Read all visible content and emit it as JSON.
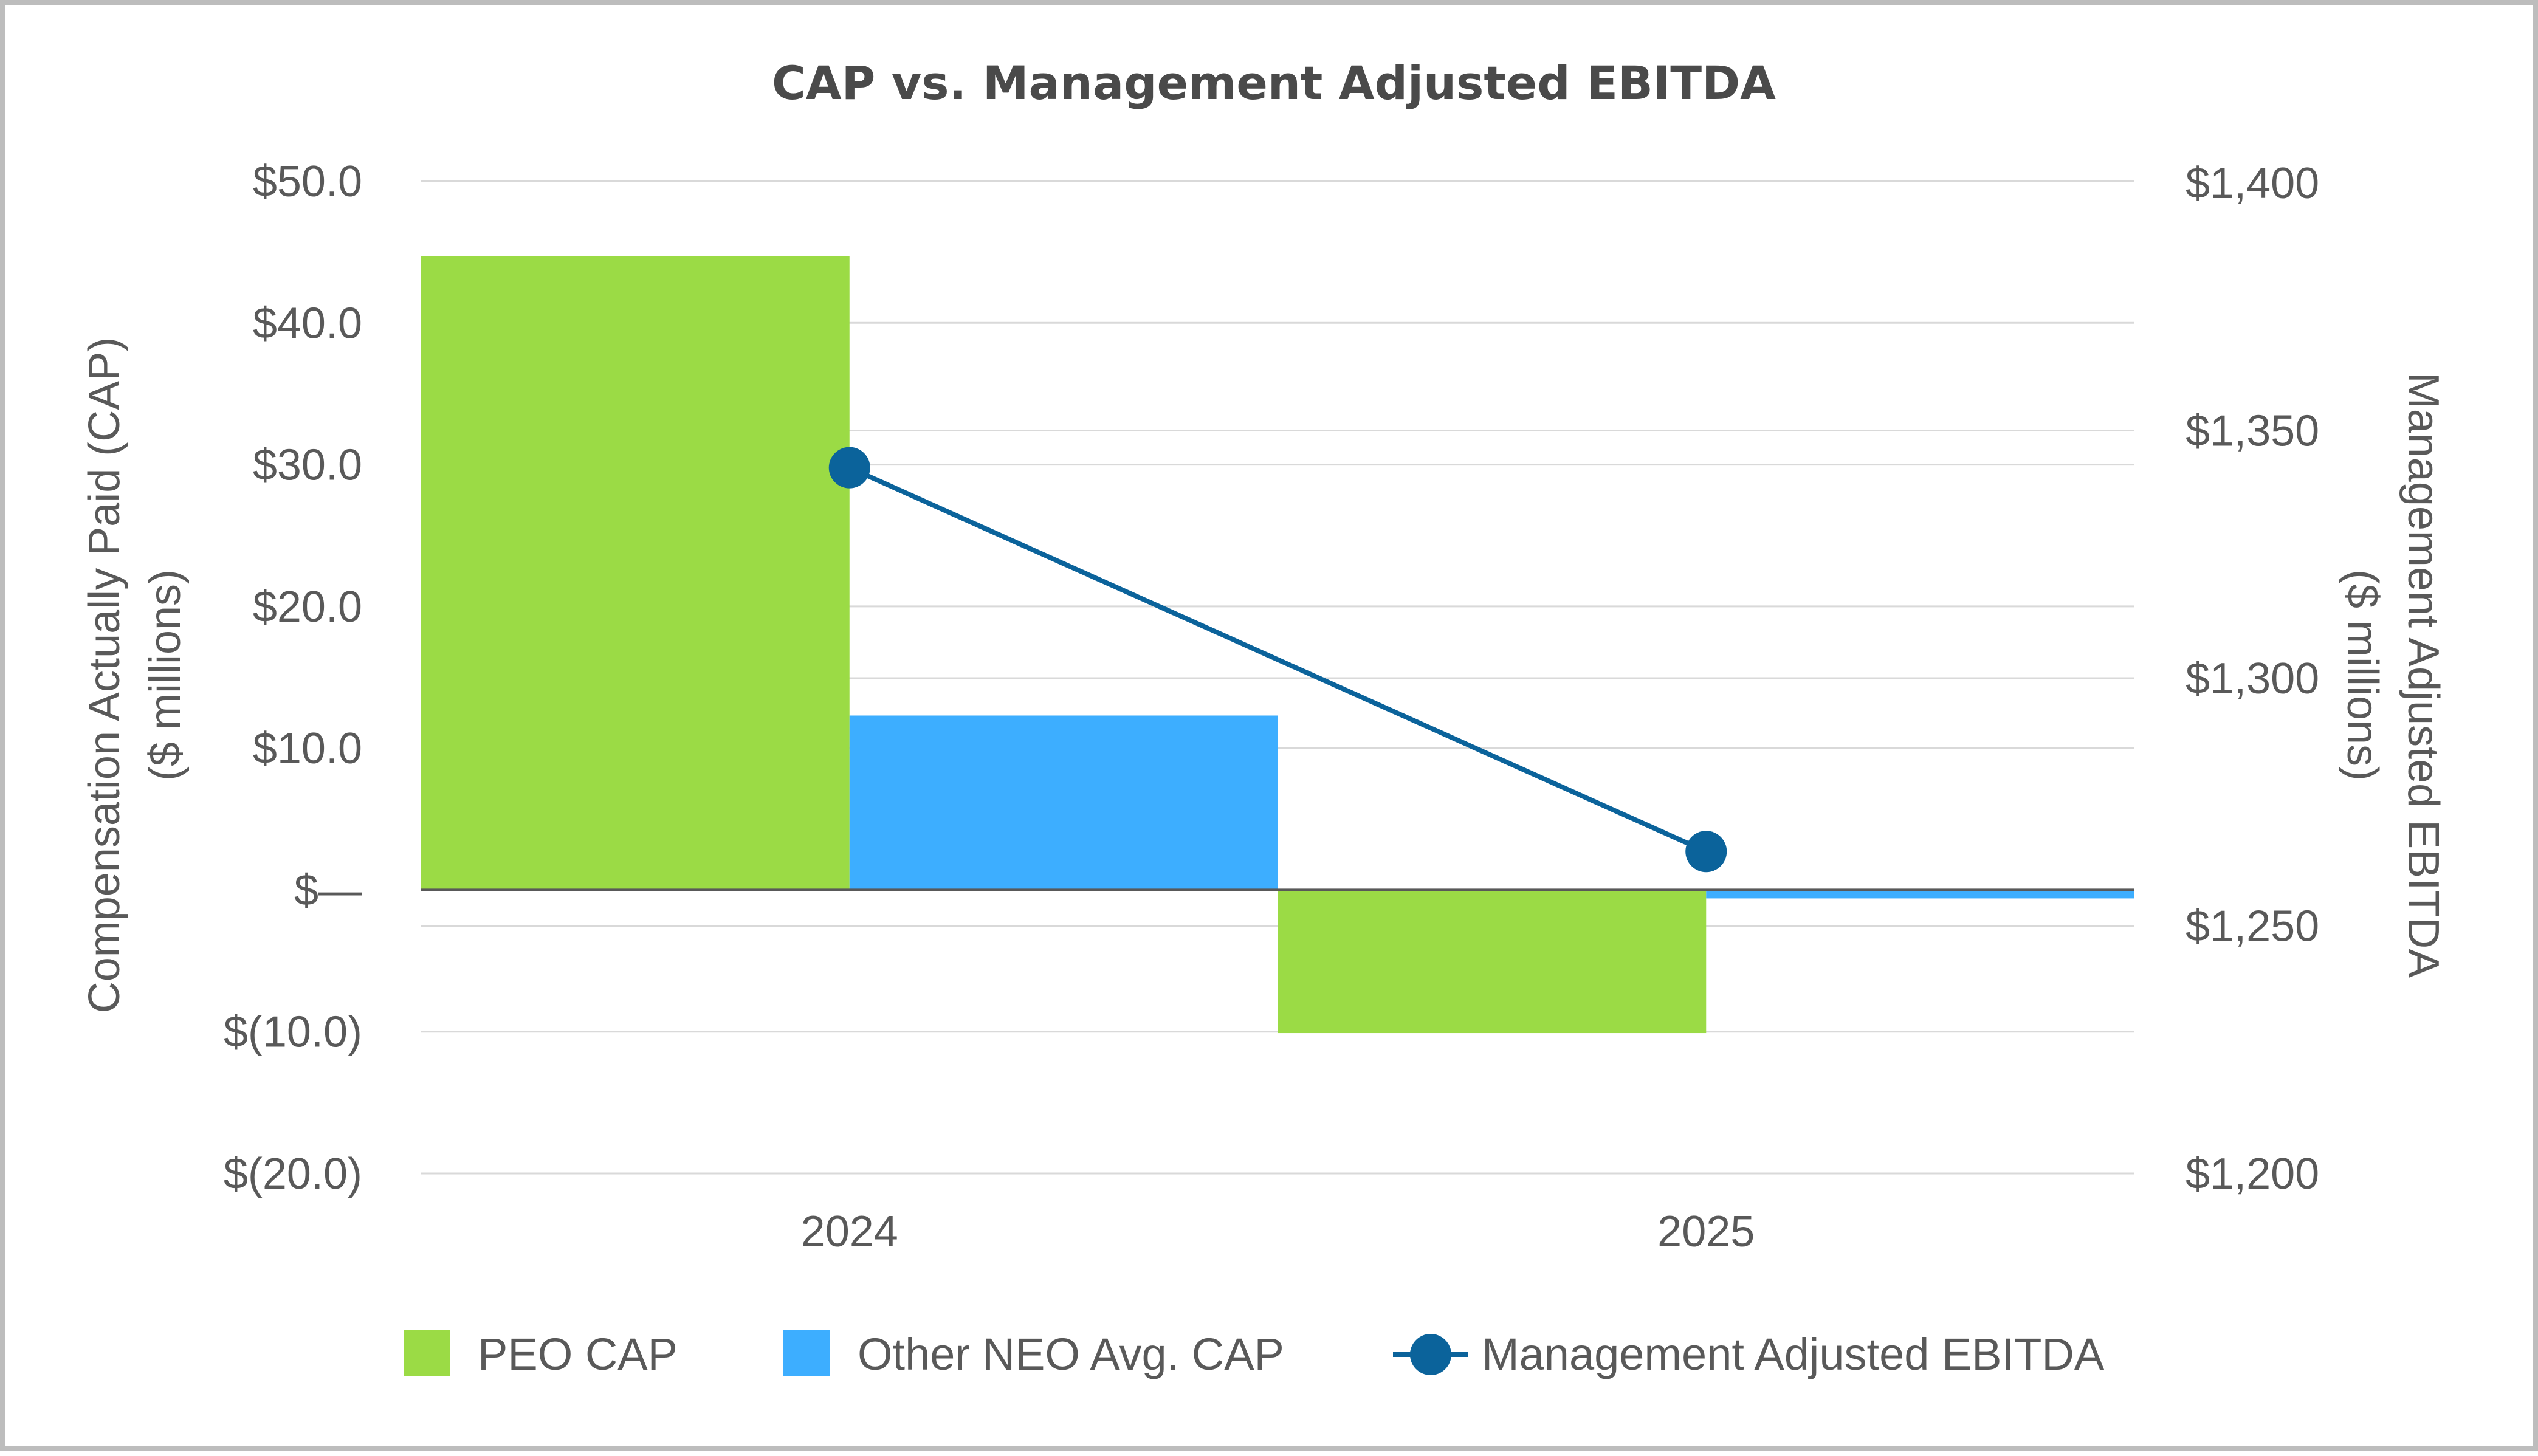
{
  "chart_data": {
    "type": "bar",
    "title": "CAP vs. Management Adjusted EBITDA",
    "categories": [
      "2024",
      "2025"
    ],
    "ylabel_left": [
      "Compensation Actually Paid (CAP)",
      "($ millions)"
    ],
    "ylabel_right": [
      "Management Adjusted EBITDA",
      "($ millions)"
    ],
    "ylim_left": [
      -20,
      50
    ],
    "ylim_right": [
      1200,
      1400
    ],
    "yticks_left": [
      {
        "value": 50,
        "label": "$50.0"
      },
      {
        "value": 40,
        "label": "$40.0"
      },
      {
        "value": 30,
        "label": "$30.0"
      },
      {
        "value": 20,
        "label": "$20.0"
      },
      {
        "value": 10,
        "label": "$10.0"
      },
      {
        "value": 0,
        "label": "$—"
      },
      {
        "value": -10,
        "label": "$(10.0)"
      },
      {
        "value": -20,
        "label": "$(20.0)"
      }
    ],
    "yticks_right": [
      {
        "value": 1400,
        "label": "$1,400"
      },
      {
        "value": 1350,
        "label": "$1,350"
      },
      {
        "value": 1300,
        "label": "$1,300"
      },
      {
        "value": 1250,
        "label": "$1,250"
      },
      {
        "value": 1200,
        "label": "$1,200"
      }
    ],
    "grid": true,
    "legend_position": "bottom",
    "series": [
      {
        "name": "PEO CAP",
        "type": "bar",
        "axis": "left",
        "color": "#9bdb45",
        "values": [
          44.7,
          -10.1
        ]
      },
      {
        "name": "Other NEO Avg. CAP",
        "type": "bar",
        "axis": "left",
        "color": "#3daeff",
        "values": [
          12.3,
          -0.6
        ]
      },
      {
        "name": "Management Adjusted EBITDA",
        "type": "line",
        "axis": "right",
        "color": "#0b639b",
        "values": [
          1342.5,
          1265
        ]
      }
    ]
  }
}
